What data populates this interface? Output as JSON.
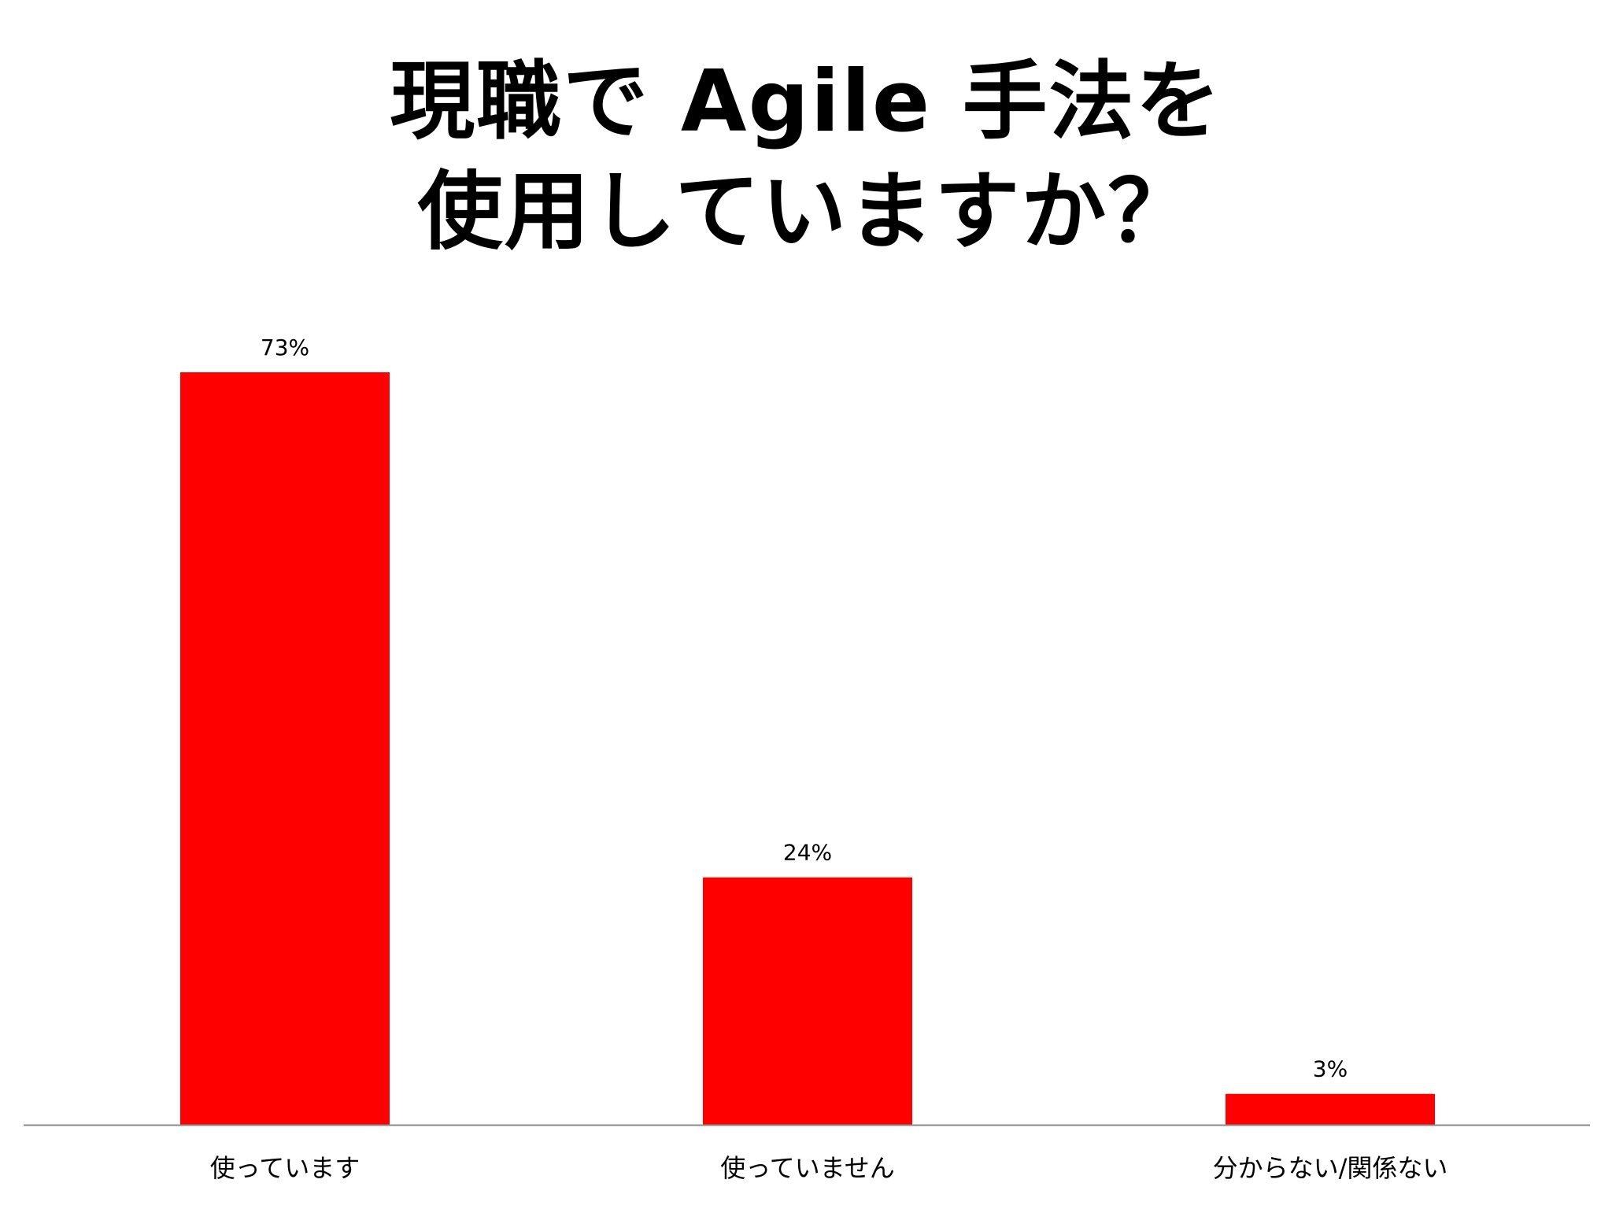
{
  "chart_data": {
    "type": "bar",
    "title_lines": [
      "現職で Agile 手法を",
      "使用していますか？"
    ],
    "categories": [
      "使っています",
      "使っていません",
      "分からない/関係ない"
    ],
    "values": [
      73,
      24,
      3
    ],
    "value_labels": [
      "73%",
      "24%",
      "3%"
    ],
    "unit": "%",
    "ylim": [
      0,
      73
    ],
    "grid": false,
    "legend": "none",
    "bar_color": "#ff0000",
    "axis_color": "#888888"
  }
}
